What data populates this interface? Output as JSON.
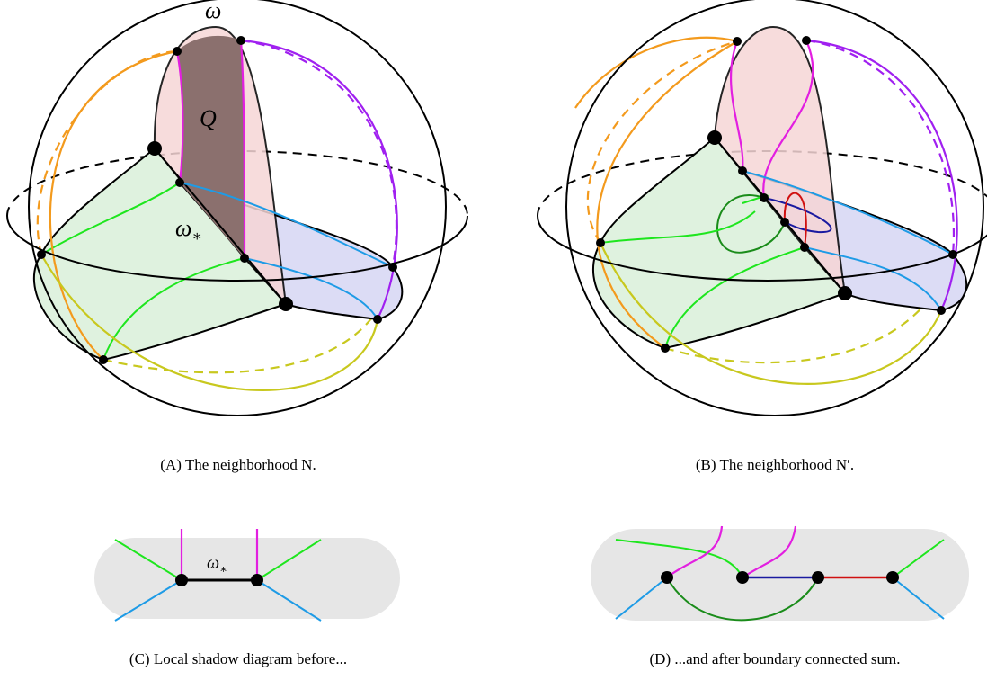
{
  "panels": [
    {
      "caption": "(A) The neighborhood N.",
      "labels": [
        {
          "symbol": "ω"
        },
        {
          "symbol": "Q"
        },
        {
          "symbol": "ω",
          "subscript": "∗"
        }
      ]
    },
    {
      "caption": "(B) The neighborhood N′."
    },
    {
      "caption": "(C) Local shadow diagram before...",
      "labels": [
        {
          "symbol": "ω",
          "subscript": "∗"
        }
      ]
    },
    {
      "caption": "(D) ...and after boundary connected sum."
    }
  ]
}
